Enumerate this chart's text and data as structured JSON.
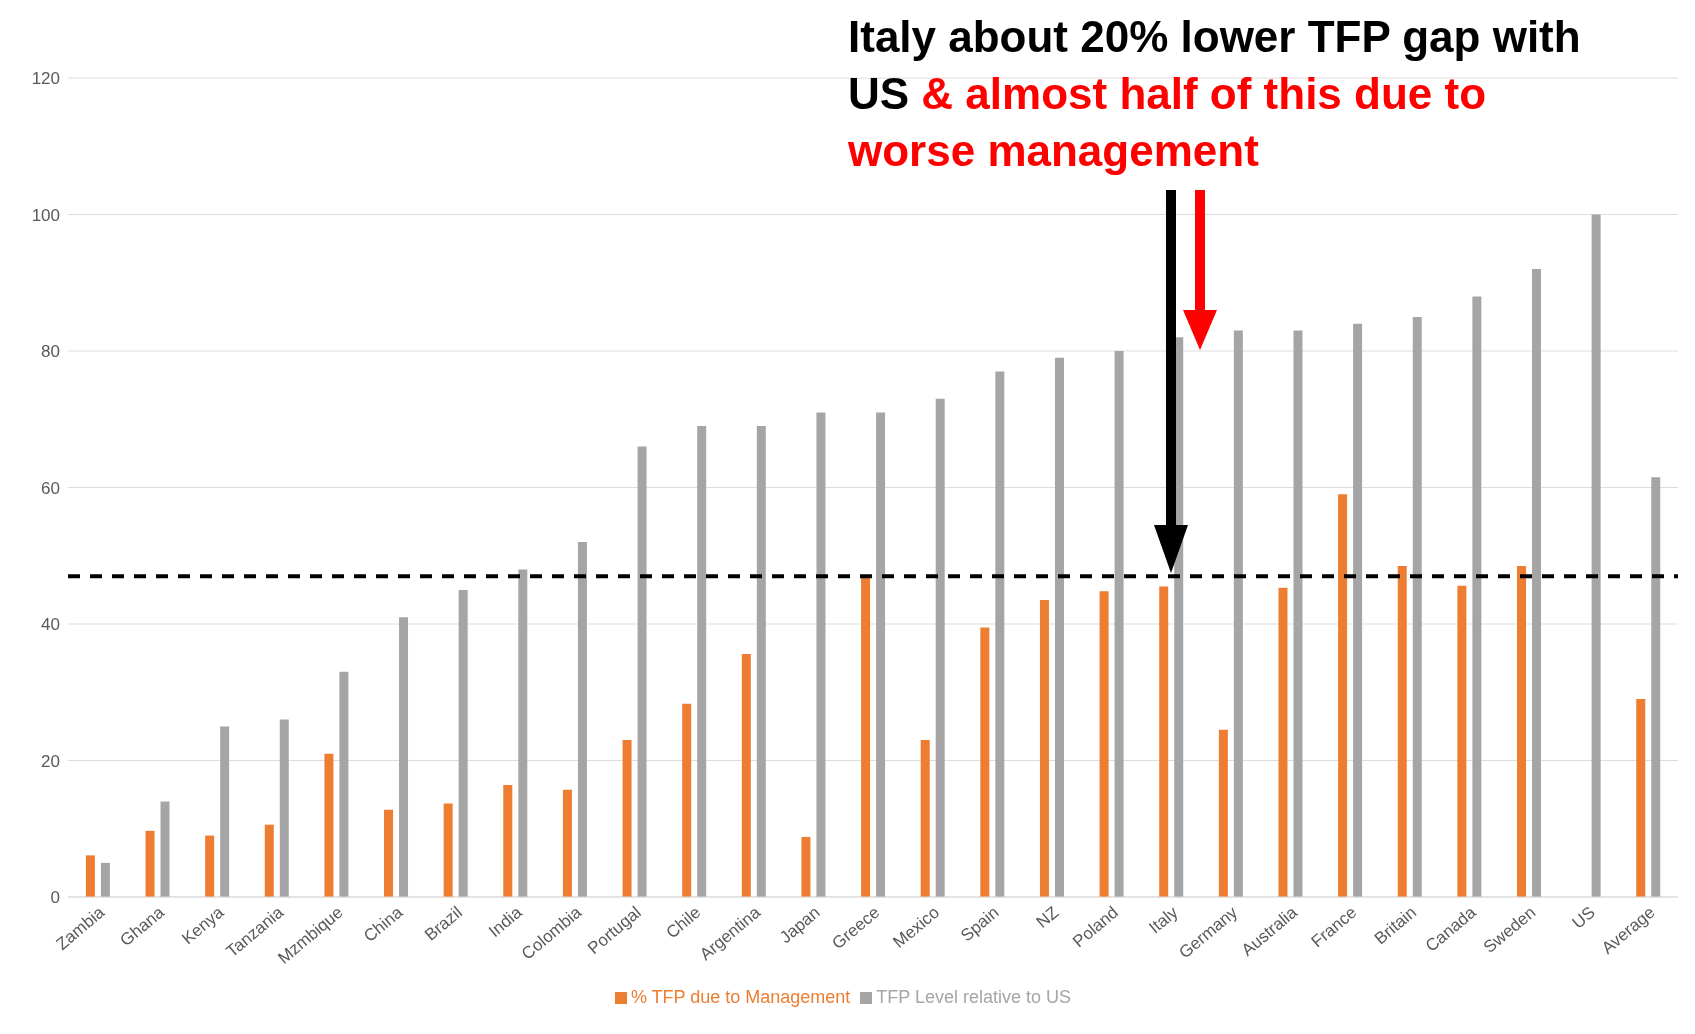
{
  "chart_data": {
    "type": "bar",
    "categories": [
      "Zambia",
      "Ghana",
      "Kenya",
      "Tanzania",
      "Mzmbique",
      "China",
      "Brazil",
      "India",
      "Colombia",
      "Portugal",
      "Chile",
      "Argentina",
      "Japan",
      "Greece",
      "Mexico",
      "Spain",
      "NZ",
      "Poland",
      "Italy",
      "Germany",
      "Australia",
      "France",
      "Britain",
      "Canada",
      "Sweden",
      "US",
      "Average"
    ],
    "series": [
      {
        "name": "% TFP due to Management",
        "color": "#ed7d31",
        "values": [
          6.1,
          9.7,
          9,
          10.6,
          21,
          12.8,
          13.7,
          16.4,
          15.7,
          23,
          28.3,
          35.6,
          8.8,
          47,
          23,
          39.5,
          43.5,
          44.8,
          45.5,
          24.5,
          45.3,
          59,
          48.5,
          45.6,
          48.5,
          null,
          29
        ]
      },
      {
        "name": "TFP Level relative to US",
        "color": "#a5a5a5",
        "values": [
          5,
          14,
          25,
          26,
          33,
          41,
          45,
          48,
          52,
          66,
          69,
          69,
          71,
          71,
          73,
          77,
          79,
          80,
          82,
          83,
          83,
          84,
          85,
          88,
          92,
          100,
          61.5
        ]
      }
    ],
    "ylim": [
      0,
      120
    ],
    "yticks": [
      0,
      20,
      40,
      60,
      80,
      100,
      120
    ],
    "grid": "y",
    "legend": "bottom",
    "ref_lines": [
      {
        "axis": "y",
        "value": 47,
        "color": "#000000",
        "line_style": "dashed"
      }
    ],
    "annotations": [
      "Italy about 20% lower TFP gap with US",
      "& almost half of this due to worse management"
    ]
  }
}
